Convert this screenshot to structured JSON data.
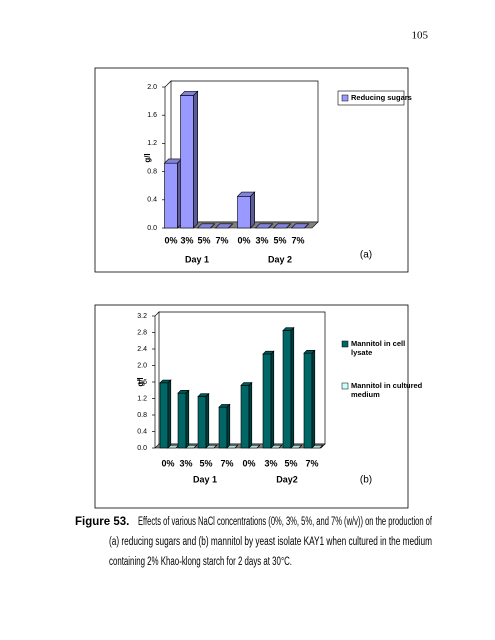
{
  "page_number": "105",
  "chart_data": [
    {
      "type": "bar3d",
      "y_label": "g/l",
      "annotation": "(a)",
      "categories": [
        "0%",
        "3%",
        "5%",
        "7%",
        "0%",
        "3%",
        "5%",
        "7%"
      ],
      "x_groups": [
        "Day 1",
        "Day 2"
      ],
      "series": [
        {
          "name": "Reducing sugars",
          "color": "#9999ff",
          "values": [
            0.92,
            1.88,
            0,
            0,
            0.45,
            0,
            0,
            0
          ]
        }
      ],
      "ylim": [
        0,
        2.0
      ],
      "yticks": [
        {
          "value": 0,
          "label": "0.0"
        },
        0.4,
        0.8,
        1.2,
        1.6,
        {
          "value": 2,
          "label": "2.0"
        }
      ],
      "legend": "right"
    },
    {
      "type": "bar3d",
      "y_label": "g/l",
      "annotation": "(b)",
      "categories": [
        "0%",
        "3%",
        "5%",
        "7%",
        "0%",
        "3%",
        "5%",
        "7%"
      ],
      "x_groups": [
        "Day 1",
        "Day2"
      ],
      "series": [
        {
          "name": "Mannitol in cell lysate",
          "color": "#006666",
          "values": [
            1.58,
            1.33,
            1.25,
            0.99,
            1.52,
            2.28,
            2.85,
            2.3
          ]
        },
        {
          "name": "Mannitol in cultured medium",
          "color": "#ccffff",
          "values": [
            0,
            0,
            0,
            0,
            0,
            0,
            0,
            0
          ]
        }
      ],
      "ylim": [
        0,
        3.2
      ],
      "yticks": [
        {
          "value": 0,
          "label": "0.0"
        },
        0.4,
        0.8,
        1.2,
        1.6,
        {
          "value": 2,
          "label": "2.0"
        },
        2.4,
        2.8,
        3.2
      ],
      "legend": "right"
    }
  ],
  "caption": {
    "label": "Figure 53.",
    "lines": [
      "Effects of various NaCl concentrations (0%, 3%, 5%, and 7% (w/v)) on the production of",
      "(a) reducing sugars and (b) mannitol by yeast isolate KAY1 when cultured in the medium",
      "containing 2% Khao-klong starch for 2 days at 30°C."
    ]
  }
}
